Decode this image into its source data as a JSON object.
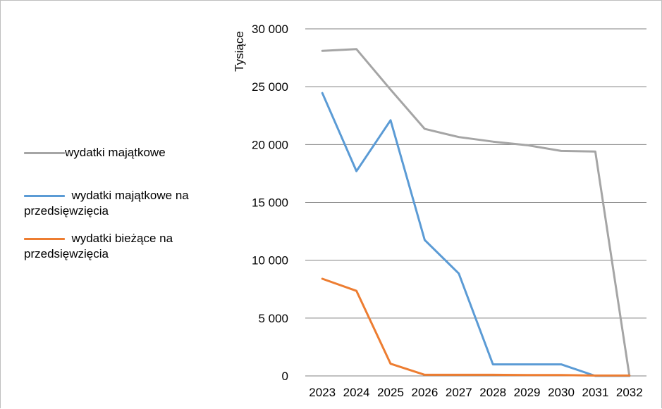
{
  "chart_data": {
    "type": "line",
    "title": "",
    "xlabel": "",
    "ylabel": "Tysiące",
    "categories": [
      "2023",
      "2024",
      "2025",
      "2026",
      "2027",
      "2028",
      "2029",
      "2030",
      "2031",
      "2032"
    ],
    "ylim": [
      0,
      30000
    ],
    "yticks": [
      0,
      5000,
      10000,
      15000,
      20000,
      25000,
      30000
    ],
    "ytick_labels": [
      "0",
      "5 000",
      "10 000",
      "15 000",
      "20 000",
      "25 000",
      "30 000"
    ],
    "grid": "horizontal",
    "legend_position": "left",
    "series": [
      {
        "name": "wydatki majątkowe",
        "color": "#a5a5a5",
        "values": [
          28100,
          28250,
          24750,
          21350,
          20650,
          20250,
          19950,
          19450,
          19400,
          0
        ]
      },
      {
        "name": "  wydatki majątkowe na przedsięwzięcia",
        "color": "#5b9bd5",
        "values": [
          24450,
          17700,
          22100,
          11750,
          8850,
          1000,
          1000,
          1000,
          0,
          0
        ]
      },
      {
        "name": "  wydatki bieżące na przedsięwzięcia",
        "color": "#ed7d31",
        "values": [
          8400,
          7350,
          1050,
          100,
          100,
          100,
          80,
          80,
          30,
          30
        ]
      }
    ]
  }
}
